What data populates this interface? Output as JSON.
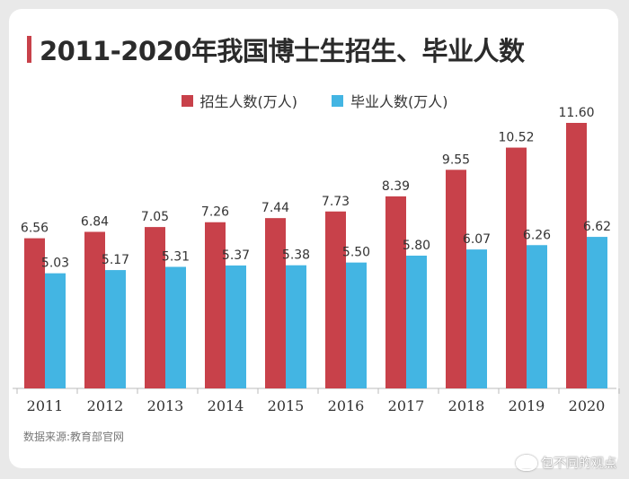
{
  "title": "2011-2020年我国博士生招生、毕业人数",
  "source": "数据来源:教育部官网",
  "watermark": "包不同的观点",
  "colors": {
    "enroll": "#c8414a",
    "graduate": "#43b5e3",
    "accent": "#c8414a"
  },
  "chart_data": {
    "type": "bar",
    "title": "2011-2020年我国博士生招生、毕业人数",
    "categories": [
      "2011",
      "2012",
      "2013",
      "2014",
      "2015",
      "2016",
      "2017",
      "2018",
      "2019",
      "2020"
    ],
    "series": [
      {
        "name": "招生人数(万人)",
        "values": [
          6.56,
          6.84,
          7.05,
          7.26,
          7.44,
          7.73,
          8.39,
          9.55,
          10.52,
          11.6
        ],
        "labels": [
          "6.56",
          "6.84",
          "7.05",
          "7.26",
          "7.44",
          "7.73",
          "8.39",
          "9.55",
          "10.52",
          "11.60"
        ]
      },
      {
        "name": "毕业人数(万人)",
        "values": [
          5.03,
          5.17,
          5.31,
          5.37,
          5.38,
          5.5,
          5.8,
          6.07,
          6.26,
          6.62
        ],
        "labels": [
          "5.03",
          "5.17",
          "5.31",
          "5.37",
          "5.38",
          "5.50",
          "5.80",
          "6.07",
          "6.26",
          "6.62"
        ]
      }
    ],
    "ylim": [
      0,
      12
    ],
    "grid": false,
    "legend": "top-center"
  }
}
